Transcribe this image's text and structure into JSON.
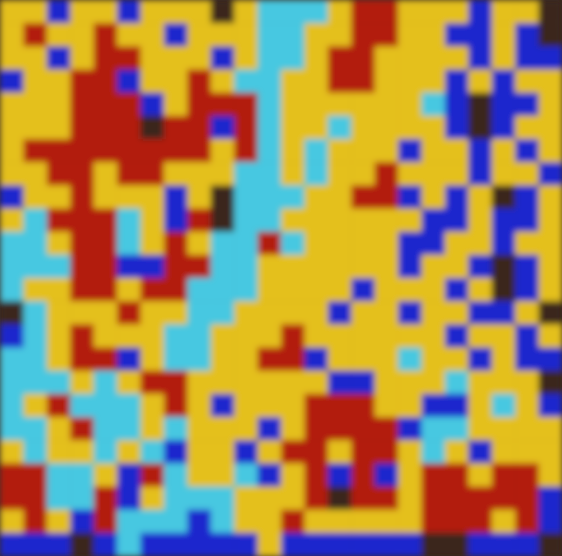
{
  "chart_data": {
    "type": "heatmap",
    "tick_labels": false,
    "color_range": [
      0,
      4
    ],
    "cells": [
      [
        3,
        3,
        1,
        3,
        3,
        1,
        3,
        3,
        3,
        0,
        3,
        2,
        2,
        2,
        3,
        4,
        4,
        3,
        3,
        3,
        1,
        3,
        3,
        0
      ],
      [
        3,
        4,
        3,
        3,
        4,
        3,
        3,
        1,
        3,
        3,
        3,
        2,
        2,
        3,
        3,
        4,
        4,
        3,
        3,
        1,
        1,
        3,
        1,
        0
      ],
      [
        3,
        3,
        1,
        3,
        4,
        4,
        3,
        3,
        3,
        1,
        3,
        2,
        2,
        3,
        4,
        4,
        3,
        3,
        3,
        3,
        1,
        3,
        1,
        1
      ],
      [
        1,
        3,
        3,
        4,
        4,
        1,
        3,
        3,
        4,
        3,
        2,
        2,
        3,
        3,
        4,
        4,
        3,
        3,
        3,
        1,
        3,
        1,
        3,
        3
      ],
      [
        3,
        3,
        3,
        4,
        4,
        4,
        1,
        3,
        4,
        4,
        4,
        2,
        3,
        3,
        3,
        3,
        3,
        3,
        2,
        1,
        0,
        1,
        1,
        3
      ],
      [
        3,
        3,
        3,
        4,
        4,
        4,
        0,
        4,
        4,
        1,
        4,
        2,
        3,
        3,
        2,
        3,
        3,
        3,
        3,
        1,
        0,
        1,
        3,
        3
      ],
      [
        3,
        4,
        4,
        4,
        4,
        4,
        4,
        4,
        4,
        3,
        4,
        2,
        3,
        2,
        3,
        3,
        3,
        1,
        3,
        3,
        1,
        3,
        1,
        3
      ],
      [
        3,
        3,
        4,
        4,
        3,
        4,
        4,
        3,
        3,
        3,
        2,
        2,
        3,
        2,
        3,
        3,
        4,
        3,
        3,
        3,
        1,
        3,
        3,
        1
      ],
      [
        1,
        3,
        3,
        4,
        3,
        3,
        3,
        1,
        3,
        0,
        2,
        2,
        2,
        3,
        3,
        4,
        4,
        1,
        3,
        1,
        3,
        0,
        1,
        3
      ],
      [
        3,
        2,
        4,
        4,
        4,
        2,
        3,
        1,
        4,
        0,
        2,
        2,
        3,
        3,
        3,
        3,
        3,
        3,
        1,
        1,
        3,
        1,
        1,
        3
      ],
      [
        2,
        2,
        3,
        4,
        4,
        2,
        3,
        4,
        3,
        2,
        2,
        4,
        2,
        3,
        3,
        3,
        3,
        1,
        1,
        3,
        3,
        1,
        3,
        3
      ],
      [
        2,
        2,
        2,
        4,
        4,
        1,
        1,
        4,
        4,
        2,
        2,
        3,
        3,
        3,
        3,
        3,
        3,
        1,
        3,
        3,
        1,
        0,
        1,
        3
      ],
      [
        2,
        3,
        3,
        4,
        4,
        3,
        4,
        4,
        2,
        2,
        2,
        3,
        3,
        3,
        3,
        1,
        3,
        3,
        3,
        1,
        3,
        0,
        1,
        3
      ],
      [
        0,
        2,
        3,
        3,
        3,
        4,
        3,
        3,
        2,
        2,
        3,
        3,
        3,
        3,
        1,
        3,
        3,
        1,
        3,
        3,
        1,
        1,
        3,
        0
      ],
      [
        1,
        2,
        3,
        4,
        3,
        3,
        3,
        2,
        2,
        3,
        3,
        3,
        4,
        3,
        3,
        3,
        3,
        3,
        3,
        1,
        3,
        3,
        1,
        3
      ],
      [
        2,
        2,
        3,
        4,
        4,
        1,
        3,
        2,
        2,
        3,
        3,
        4,
        4,
        1,
        3,
        3,
        3,
        2,
        3,
        3,
        1,
        3,
        1,
        1
      ],
      [
        2,
        2,
        2,
        3,
        2,
        3,
        4,
        4,
        3,
        3,
        3,
        3,
        3,
        3,
        1,
        1,
        3,
        3,
        3,
        2,
        3,
        3,
        3,
        0
      ],
      [
        2,
        3,
        4,
        2,
        2,
        2,
        3,
        4,
        3,
        1,
        3,
        3,
        3,
        4,
        4,
        4,
        3,
        3,
        1,
        1,
        3,
        2,
        3,
        1
      ],
      [
        2,
        2,
        3,
        4,
        2,
        2,
        3,
        2,
        3,
        3,
        3,
        1,
        3,
        4,
        4,
        4,
        4,
        1,
        2,
        2,
        3,
        3,
        3,
        3
      ],
      [
        3,
        2,
        3,
        3,
        2,
        3,
        2,
        1,
        3,
        3,
        1,
        3,
        4,
        4,
        3,
        4,
        4,
        3,
        2,
        3,
        1,
        3,
        3,
        3
      ],
      [
        4,
        4,
        2,
        2,
        3,
        1,
        4,
        2,
        3,
        3,
        2,
        1,
        3,
        4,
        1,
        4,
        1,
        3,
        4,
        4,
        3,
        4,
        4,
        3
      ],
      [
        4,
        4,
        2,
        2,
        4,
        1,
        3,
        2,
        2,
        2,
        3,
        3,
        3,
        4,
        0,
        4,
        4,
        3,
        4,
        4,
        4,
        4,
        4,
        1
      ],
      [
        3,
        4,
        3,
        1,
        4,
        2,
        2,
        2,
        1,
        2,
        3,
        3,
        4,
        3,
        3,
        3,
        3,
        3,
        4,
        4,
        4,
        3,
        4,
        1
      ],
      [
        1,
        1,
        1,
        0,
        1,
        2,
        1,
        1,
        1,
        1,
        1,
        3,
        1,
        1,
        1,
        1,
        1,
        1,
        0,
        0,
        1,
        1,
        1,
        0
      ]
    ]
  }
}
